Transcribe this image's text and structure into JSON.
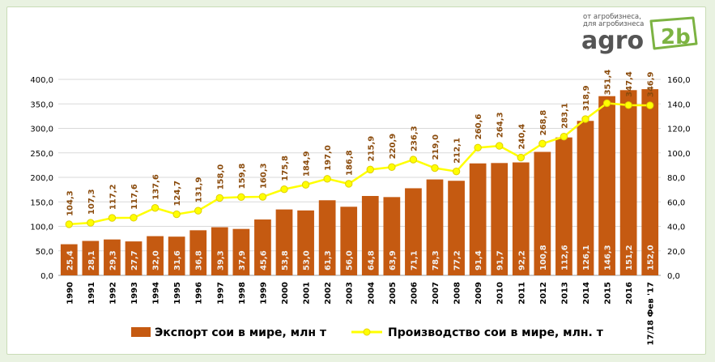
{
  "logo": {
    "tagline_1": "от агробизнеса,",
    "tagline_2": "для агробизнеса",
    "wordmark": "agro",
    "badge": "2b",
    "colors": {
      "gray": "#555555",
      "green": "#7cb342"
    }
  },
  "chart_data": {
    "type": "bar",
    "categories": [
      "1990",
      "1991",
      "1992",
      "1993",
      "1994",
      "1995",
      "1996",
      "1997",
      "1998",
      "1999",
      "2000",
      "2001",
      "2002",
      "2003",
      "2004",
      "2005",
      "2006",
      "2007",
      "2008",
      "2009",
      "2010",
      "2011",
      "2012",
      "2013",
      "2014",
      "2015",
      "2016",
      "17/18 Фев '17"
    ],
    "series": [
      {
        "name": "Экспорт сои в мире, млн т",
        "type": "bar",
        "axis": "right",
        "color": "#c55a11",
        "values": [
          25.4,
          28.1,
          29.3,
          27.7,
          32.0,
          31.6,
          36.8,
          39.3,
          37.9,
          45.6,
          53.8,
          53.0,
          61.3,
          56.0,
          64.8,
          63.9,
          71.1,
          78.3,
          77.2,
          91.4,
          91.7,
          92.2,
          100.8,
          112.6,
          126.1,
          146.3,
          151.2,
          152.0
        ],
        "labels": [
          "25,4",
          "28,1",
          "29,3",
          "27,7",
          "32,0",
          "31,6",
          "36,8",
          "39,3",
          "37,9",
          "45,6",
          "53,8",
          "53,0",
          "61,3",
          "56,0",
          "64,8",
          "63,9",
          "71,1",
          "78,3",
          "77,2",
          "91,4",
          "91,7",
          "92,2",
          "100,8",
          "112,6",
          "126,1",
          "146,3",
          "151,2",
          "152,0"
        ]
      },
      {
        "name": "Производство сои в мире, млн. т",
        "type": "line",
        "axis": "left",
        "color": "#ffff00",
        "values": [
          104.3,
          107.3,
          117.2,
          117.6,
          137.6,
          124.7,
          131.9,
          158.0,
          159.8,
          160.3,
          175.8,
          184.9,
          197.0,
          186.8,
          215.9,
          220.9,
          236.3,
          219.0,
          212.1,
          260.6,
          264.3,
          240.4,
          268.8,
          283.1,
          318.9,
          351.4,
          347.4,
          346.9
        ],
        "labels": [
          "104,3",
          "107,3",
          "117,2",
          "117,6",
          "137,6",
          "124,7",
          "131,9",
          "158,0",
          "159,8",
          "160,3",
          "175,8",
          "184,9",
          "197,0",
          "186,8",
          "215,9",
          "220,9",
          "236,3",
          "219,0",
          "212,1",
          "260,6",
          "264,3",
          "240,4",
          "268,8",
          "283,1",
          "318,9",
          "351,4",
          "347,4",
          "346,9"
        ]
      }
    ],
    "left_axis": {
      "min": 0,
      "max": 400,
      "step": 50,
      "tick_labels": [
        "0,0",
        "50,0",
        "100,0",
        "150,0",
        "200,0",
        "250,0",
        "300,0",
        "350,0",
        "400,0"
      ]
    },
    "right_axis": {
      "min": 0,
      "max": 160,
      "step": 20,
      "tick_labels": [
        "0,0",
        "20,0",
        "40,0",
        "60,0",
        "80,0",
        "100,0",
        "120,0",
        "140,0",
        "160,0"
      ]
    },
    "grid": true,
    "legend_position": "bottom"
  }
}
